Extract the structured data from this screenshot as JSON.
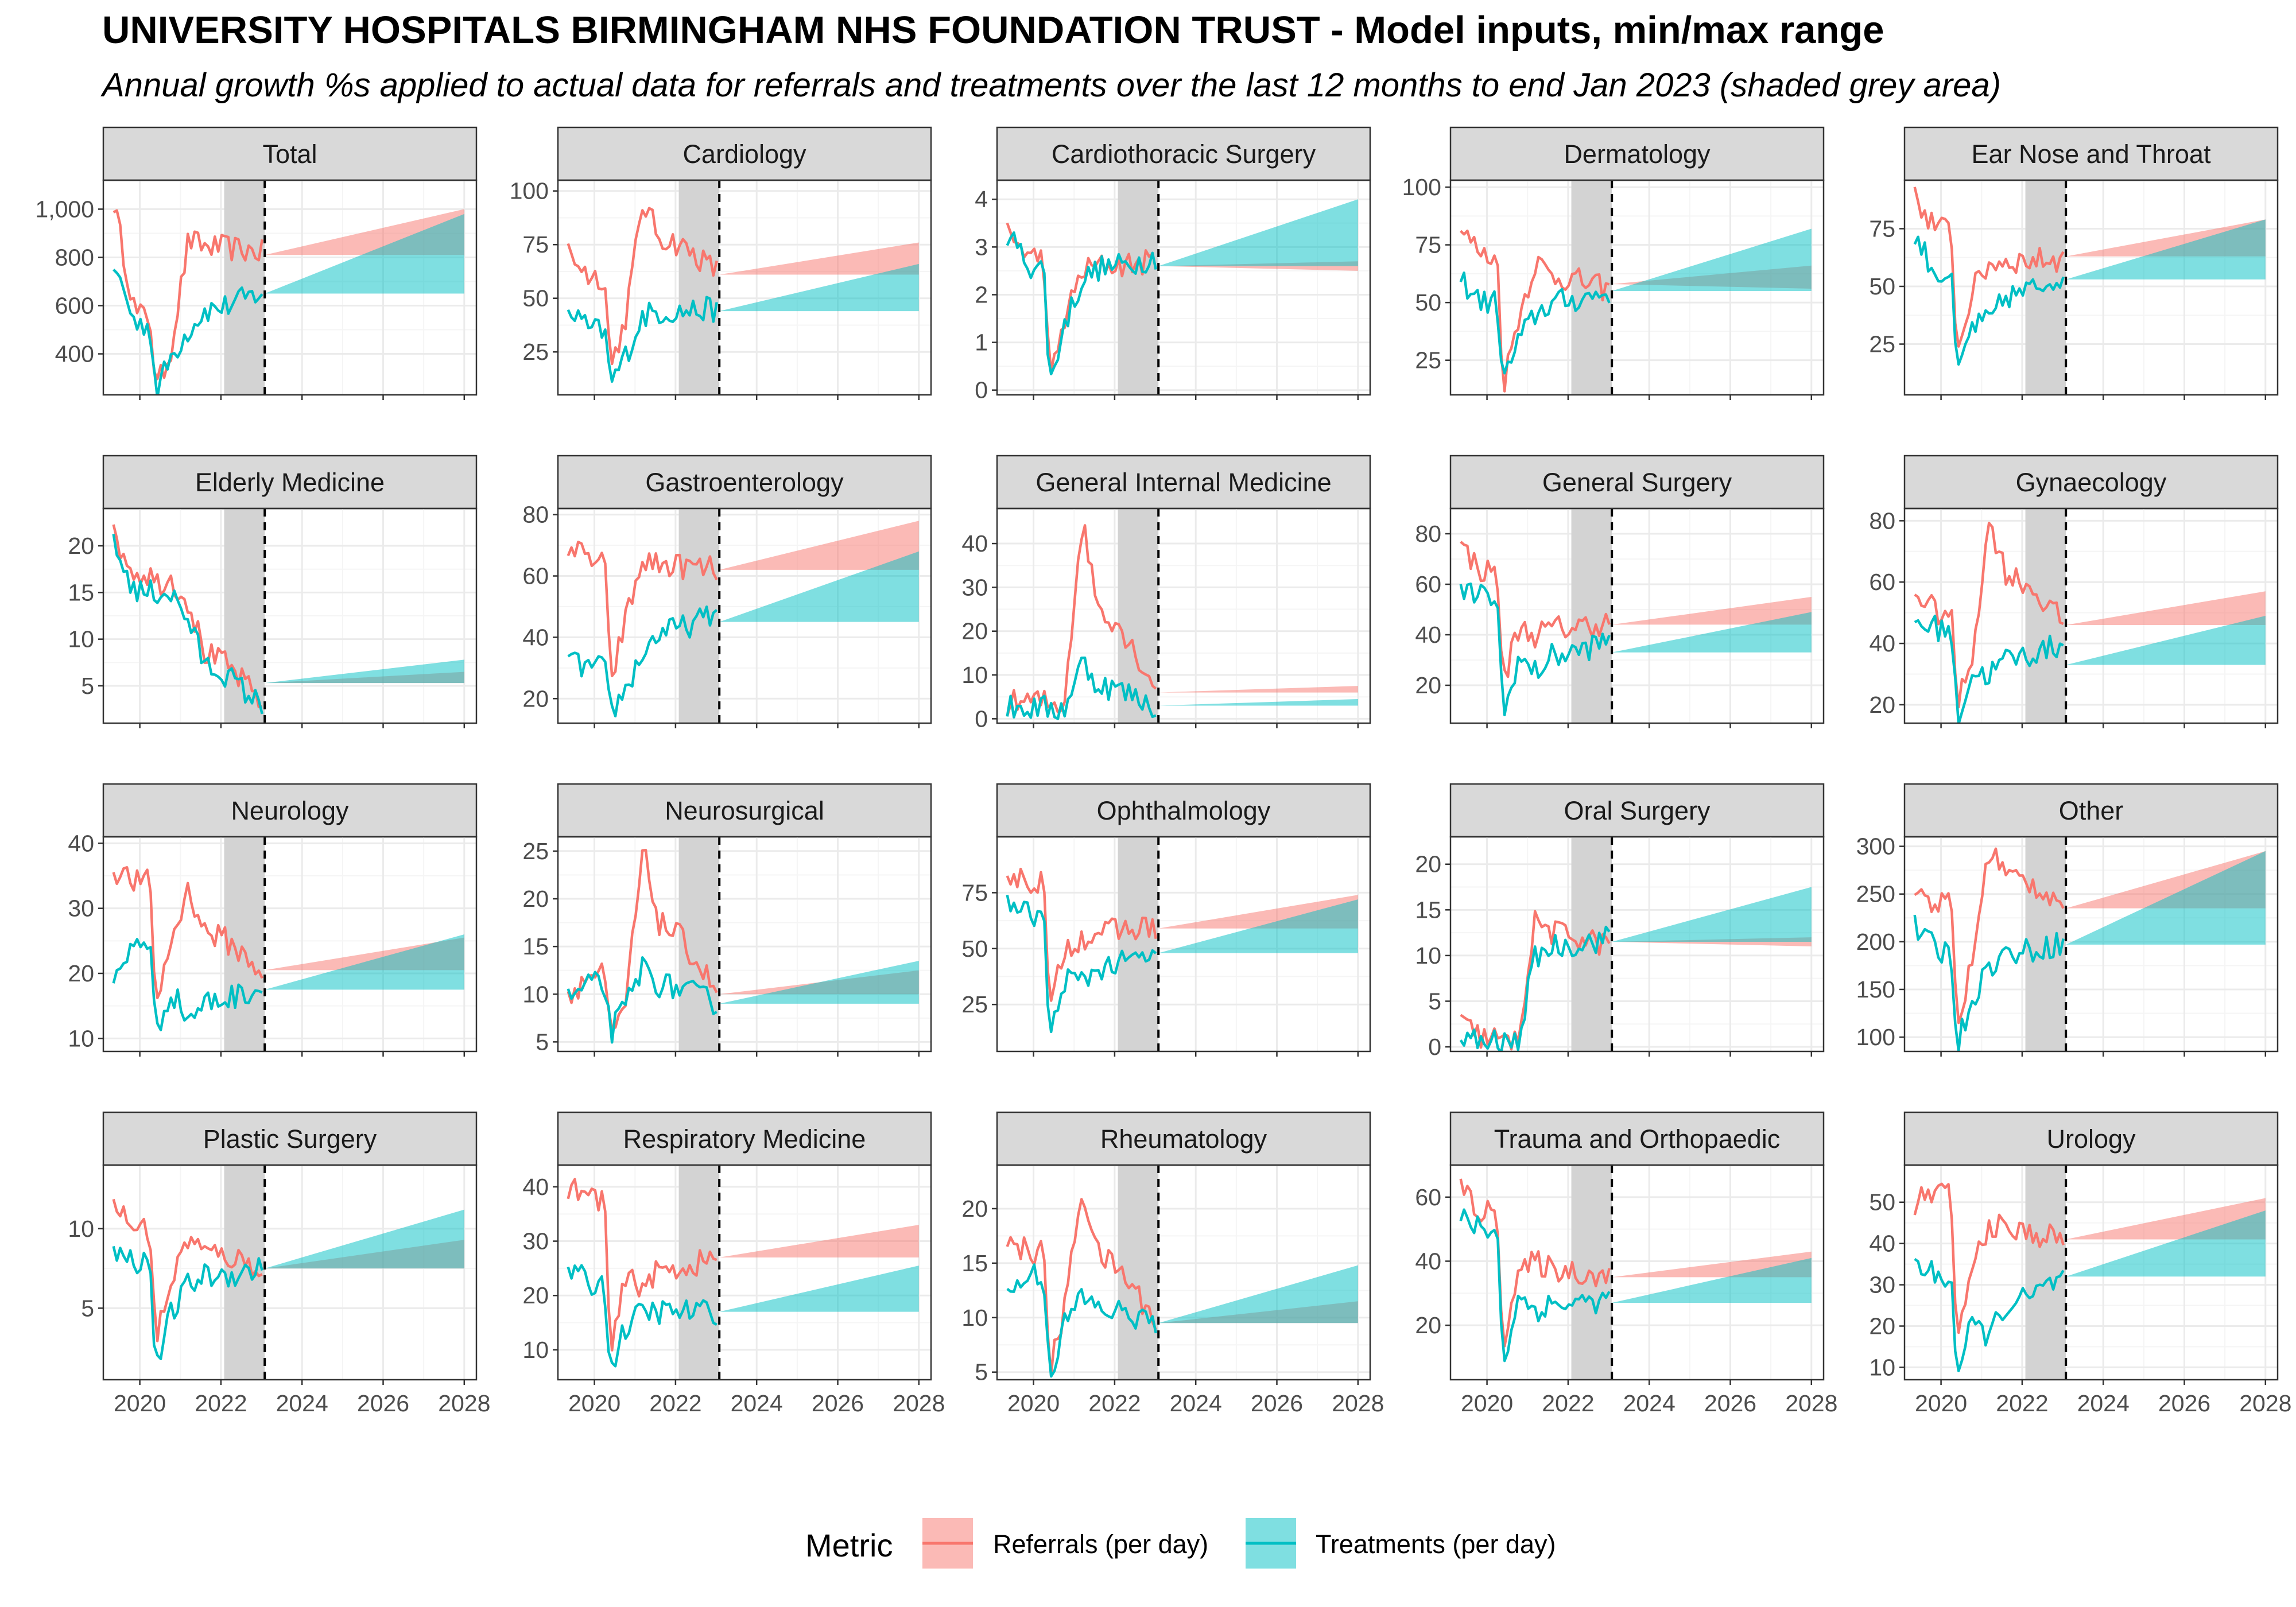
{
  "title": "UNIVERSITY HOSPITALS BIRMINGHAM NHS FOUNDATION TRUST - Model inputs, min/max range",
  "subtitle": "Annual growth %s applied to actual data for referrals and treatments over the last 12 months to end Jan 2023 (shaded grey area)",
  "colors": {
    "referrals": "#F8766D",
    "treatments": "#00BFC4",
    "shade": "#d3d3d3",
    "strip_bg": "#d9d9d9",
    "grid_major": "#ebebeb",
    "grid_minor": "#f5f5f5"
  },
  "legend": {
    "title": "Metric",
    "items": [
      {
        "label": "Referrals (per day)",
        "color": "#F8766D"
      },
      {
        "label": "Treatments (per day)",
        "color": "#00BFC4"
      }
    ]
  },
  "chart_data": {
    "type": "line",
    "facet_layout": "5 columns x 4 rows, shared x axis",
    "xlim": [
      2019.1,
      2028.3
    ],
    "x_ticks": [
      2020,
      2022,
      2024,
      2026,
      2028
    ],
    "x_tick_labels": [
      "2020",
      "2022",
      "2024",
      "2026",
      "2028"
    ],
    "shaded_period": [
      2022.08,
      2023.08
    ],
    "forecast_start": 2023.08,
    "forecast_end": 2028.0,
    "grid": true,
    "legend_position": "bottom",
    "panels": [
      {
        "name": "Total",
        "ylim": [
          230,
          1120
        ],
        "y_ticks": [
          400,
          600,
          800,
          1000
        ],
        "y_tick_labels": [
          "400",
          "600",
          "800",
          "1,000"
        ],
        "referrals": {
          "start": 1030,
          "low": 560,
          "covid": 250,
          "mid": 870,
          "end": 820
        },
        "treatments": {
          "start": 770,
          "low": 520,
          "covid": 240,
          "mid": 500,
          "end": 660
        },
        "referrals_band": {
          "start": 810,
          "min": 810,
          "max": 1000
        },
        "treatments_band": {
          "start": 650,
          "min": 650,
          "max": 980
        }
      },
      {
        "name": "Cardiology",
        "ylim": [
          5,
          105
        ],
        "y_ticks": [
          25,
          50,
          75,
          100
        ],
        "y_tick_labels": [
          "25",
          "50",
          "75",
          "100"
        ],
        "referrals": {
          "start": 72,
          "low": 60,
          "covid": 18,
          "mid": 95,
          "end": 62
        },
        "treatments": {
          "start": 45,
          "low": 35,
          "covid": 10,
          "mid": 42,
          "end": 45
        },
        "referrals_band": {
          "start": 61,
          "min": 61,
          "max": 76
        },
        "treatments_band": {
          "start": 44,
          "min": 44,
          "max": 66
        }
      },
      {
        "name": "Cardiothoracic Surgery",
        "ylim": [
          -0.1,
          4.4
        ],
        "y_ticks": [
          0,
          1,
          2,
          3,
          4
        ],
        "y_tick_labels": [
          "0",
          "1",
          "2",
          "3",
          "4"
        ],
        "referrals": {
          "start": 3.3,
          "low": 2.8,
          "covid": 0.1,
          "mid": 2.5,
          "end": 2.7
        },
        "treatments": {
          "start": 3.3,
          "low": 2.6,
          "covid": 0.1,
          "mid": 2.3,
          "end": 2.8
        },
        "referrals_band": {
          "start": 2.6,
          "min": 2.5,
          "max": 2.7
        },
        "treatments_band": {
          "start": 2.6,
          "min": 2.6,
          "max": 4.0
        }
      },
      {
        "name": "Dermatology",
        "ylim": [
          10,
          103
        ],
        "y_ticks": [
          25,
          50,
          75,
          100
        ],
        "y_tick_labels": [
          "25",
          "50",
          "75",
          "100"
        ],
        "referrals": {
          "start": 82,
          "low": 70,
          "covid": 14,
          "mid": 68,
          "end": 55
        },
        "treatments": {
          "start": 60,
          "low": 50,
          "covid": 15,
          "mid": 45,
          "end": 55
        },
        "referrals_band": {
          "start": 58,
          "min": 56,
          "max": 66
        },
        "treatments_band": {
          "start": 55,
          "min": 55,
          "max": 82
        }
      },
      {
        "name": "Ear Nose and Throat",
        "ylim": [
          3,
          96
        ],
        "y_ticks": [
          25,
          50,
          75
        ],
        "y_tick_labels": [
          "25",
          "50",
          "75"
        ],
        "referrals": {
          "start": 88,
          "low": 75,
          "covid": 20,
          "mid": 60,
          "end": 62
        },
        "treatments": {
          "start": 72,
          "low": 55,
          "covid": 10,
          "mid": 35,
          "end": 56
        },
        "referrals_band": {
          "start": 63,
          "min": 63,
          "max": 79
        },
        "treatments_band": {
          "start": 53,
          "min": 53,
          "max": 79
        }
      },
      {
        "name": "Elderly Medicine",
        "ylim": [
          1,
          24
        ],
        "y_ticks": [
          5,
          10,
          15,
          20
        ],
        "y_tick_labels": [
          "5",
          "10",
          "15",
          "20"
        ],
        "referrals": {
          "start": 21,
          "low": 17,
          "covid": 16,
          "mid": 14,
          "end": 3
        },
        "treatments": {
          "start": 20,
          "low": 15,
          "covid": 15,
          "mid": 12,
          "end": 2.5
        },
        "referrals_band": {
          "start": 5.3,
          "min": 5.3,
          "max": 6.5
        },
        "treatments_band": {
          "start": 5.3,
          "min": 5.3,
          "max": 7.8
        }
      },
      {
        "name": "Gastroenterology",
        "ylim": [
          12,
          82
        ],
        "y_ticks": [
          20,
          40,
          60,
          80
        ],
        "y_tick_labels": [
          "20",
          "40",
          "60",
          "80"
        ],
        "referrals": {
          "start": 70,
          "low": 65,
          "covid": 25,
          "mid": 65,
          "end": 62
        },
        "treatments": {
          "start": 32,
          "low": 30,
          "covid": 15,
          "mid": 35,
          "end": 48
        },
        "referrals_band": {
          "start": 62,
          "min": 62,
          "max": 78
        },
        "treatments_band": {
          "start": 45,
          "min": 45,
          "max": 68
        }
      },
      {
        "name": "General Internal Medicine",
        "ylim": [
          -1,
          48
        ],
        "y_ticks": [
          0,
          10,
          20,
          30,
          40
        ],
        "y_tick_labels": [
          "0",
          "10",
          "20",
          "30",
          "40"
        ],
        "referrals": {
          "start": 3.5,
          "low": 4,
          "covid": 3,
          "mid": 45,
          "end": 6
        },
        "treatments": {
          "start": 2.5,
          "low": 2.5,
          "covid": 2,
          "mid": 13,
          "end": 2.5
        },
        "referrals_band": {
          "start": 6,
          "min": 6,
          "max": 7.5
        },
        "treatments_band": {
          "start": 3,
          "min": 3,
          "max": 4.5
        }
      },
      {
        "name": "General Surgery",
        "ylim": [
          5,
          90
        ],
        "y_ticks": [
          20,
          40,
          60,
          80
        ],
        "y_tick_labels": [
          "20",
          "40",
          "60",
          "80"
        ],
        "referrals": {
          "start": 75,
          "low": 65,
          "covid": 20,
          "mid": 40,
          "end": 45
        },
        "treatments": {
          "start": 57,
          "low": 55,
          "covid": 6,
          "mid": 25,
          "end": 38
        },
        "referrals_band": {
          "start": 44,
          "min": 44,
          "max": 55
        },
        "treatments_band": {
          "start": 33,
          "min": 33,
          "max": 49
        }
      },
      {
        "name": "Gynaecology",
        "ylim": [
          14,
          84
        ],
        "y_ticks": [
          20,
          40,
          60,
          80
        ],
        "y_tick_labels": [
          "20",
          "40",
          "60",
          "80"
        ],
        "referrals": {
          "start": 57,
          "low": 50,
          "covid": 20,
          "mid": 80,
          "end": 46
        },
        "treatments": {
          "start": 47,
          "low": 45,
          "covid": 15,
          "mid": 30,
          "end": 40
        },
        "referrals_band": {
          "start": 46,
          "min": 46,
          "max": 57
        },
        "treatments_band": {
          "start": 33,
          "min": 33,
          "max": 49
        }
      },
      {
        "name": "Neurology",
        "ylim": [
          8,
          41
        ],
        "y_ticks": [
          10,
          20,
          30,
          40
        ],
        "y_tick_labels": [
          "10",
          "20",
          "30",
          "40"
        ],
        "referrals": {
          "start": 36,
          "low": 34,
          "covid": 15,
          "mid": 33,
          "end": 20
        },
        "treatments": {
          "start": 18,
          "low": 25,
          "covid": 10,
          "mid": 13,
          "end": 18
        },
        "referrals_band": {
          "start": 20.5,
          "min": 20.5,
          "max": 25.5
        },
        "treatments_band": {
          "start": 17.5,
          "min": 17.5,
          "max": 26
        }
      },
      {
        "name": "Neurosurgical",
        "ylim": [
          4,
          26.5
        ],
        "y_ticks": [
          5,
          10,
          15,
          20,
          25
        ],
        "y_tick_labels": [
          "5",
          "10",
          "15",
          "20",
          "25"
        ],
        "referrals": {
          "start": 10,
          "low": 12,
          "covid": 5,
          "mid": 25,
          "end": 10
        },
        "treatments": {
          "start": 9.5,
          "low": 11,
          "covid": 6,
          "mid": 13,
          "end": 9
        },
        "referrals_band": {
          "start": 10,
          "min": 10,
          "max": 12.5
        },
        "treatments_band": {
          "start": 9,
          "min": 9,
          "max": 13.5
        }
      },
      {
        "name": "Ophthalmology",
        "ylim": [
          4,
          100
        ],
        "y_ticks": [
          25,
          50,
          75
        ],
        "y_tick_labels": [
          "25",
          "50",
          "75"
        ],
        "referrals": {
          "start": 83,
          "low": 80,
          "covid": 20,
          "mid": 55,
          "end": 60
        },
        "treatments": {
          "start": 70,
          "low": 65,
          "covid": 8,
          "mid": 35,
          "end": 48
        },
        "referrals_band": {
          "start": 59,
          "min": 59,
          "max": 74
        },
        "treatments_band": {
          "start": 48,
          "min": 48,
          "max": 72
        }
      },
      {
        "name": "Oral Surgery",
        "ylim": [
          -0.5,
          23
        ],
        "y_ticks": [
          0,
          5,
          10,
          15,
          20
        ],
        "y_tick_labels": [
          "0",
          "5",
          "10",
          "15",
          "20"
        ],
        "referrals": {
          "start": 2.5,
          "low": 1,
          "covid": 0.3,
          "mid": 14,
          "end": 11
        },
        "treatments": {
          "start": 0.8,
          "low": 0.5,
          "covid": 0.3,
          "mid": 10,
          "end": 12
        },
        "referrals_band": {
          "start": 11.5,
          "min": 11,
          "max": 12
        },
        "treatments_band": {
          "start": 11.5,
          "min": 11.5,
          "max": 17.5
        }
      },
      {
        "name": "Other",
        "ylim": [
          85,
          310
        ],
        "y_ticks": [
          100,
          150,
          200,
          250,
          300
        ],
        "y_tick_labels": [
          "100",
          "150",
          "200",
          "250",
          "300"
        ],
        "referrals": {
          "start": 255,
          "low": 240,
          "covid": 110,
          "mid": 300,
          "end": 240
        },
        "treatments": {
          "start": 215,
          "low": 190,
          "covid": 90,
          "mid": 175,
          "end": 200
        },
        "referrals_band": {
          "start": 235,
          "min": 235,
          "max": 295
        },
        "treatments_band": {
          "start": 197,
          "min": 197,
          "max": 295
        }
      },
      {
        "name": "Plastic Surgery",
        "ylim": [
          0.5,
          14
        ],
        "y_ticks": [
          5,
          10
        ],
        "y_tick_labels": [
          "5",
          "10"
        ],
        "referrals": {
          "start": 11.5,
          "low": 10,
          "covid": 3,
          "mid": 9.5,
          "end": 7.5
        },
        "treatments": {
          "start": 8.5,
          "low": 8,
          "covid": 1,
          "mid": 6.5,
          "end": 7.5
        },
        "referrals_band": {
          "start": 7.5,
          "min": 7.5,
          "max": 9.3
        },
        "treatments_band": {
          "start": 7.5,
          "min": 7.5,
          "max": 11.2
        }
      },
      {
        "name": "Respiratory Medicine",
        "ylim": [
          4.5,
          44
        ],
        "y_ticks": [
          10,
          20,
          30,
          40
        ],
        "y_tick_labels": [
          "10",
          "20",
          "30",
          "40"
        ],
        "referrals": {
          "start": 40,
          "low": 38,
          "covid": 8,
          "mid": 22,
          "end": 27
        },
        "treatments": {
          "start": 25,
          "low": 22,
          "covid": 6,
          "mid": 17,
          "end": 17
        },
        "referrals_band": {
          "start": 27,
          "min": 27,
          "max": 33
        },
        "treatments_band": {
          "start": 17,
          "min": 17,
          "max": 25.5
        }
      },
      {
        "name": "Rheumatology",
        "ylim": [
          4.3,
          24
        ],
        "y_ticks": [
          5,
          10,
          15,
          20
        ],
        "y_tick_labels": [
          "5",
          "10",
          "15",
          "20"
        ],
        "referrals": {
          "start": 17,
          "low": 16,
          "covid": 5,
          "mid": 22,
          "end": 9.5
        },
        "treatments": {
          "start": 12,
          "low": 14,
          "covid": 4.5,
          "mid": 12,
          "end": 9.5
        },
        "referrals_band": {
          "start": 9.5,
          "min": 9.5,
          "max": 11.5
        },
        "treatments_band": {
          "start": 9.5,
          "min": 9.5,
          "max": 14.8
        }
      },
      {
        "name": "Trauma and Orthopaedic",
        "ylim": [
          3,
          70
        ],
        "y_ticks": [
          20,
          40,
          60
        ],
        "y_tick_labels": [
          "20",
          "40",
          "60"
        ],
        "referrals": {
          "start": 62,
          "low": 55,
          "covid": 15,
          "mid": 40,
          "end": 35
        },
        "treatments": {
          "start": 53,
          "low": 50,
          "covid": 7,
          "mid": 25,
          "end": 28
        },
        "referrals_band": {
          "start": 35,
          "min": 35,
          "max": 43
        },
        "treatments_band": {
          "start": 27,
          "min": 27,
          "max": 41
        }
      },
      {
        "name": "Urology",
        "ylim": [
          7,
          59
        ],
        "y_ticks": [
          10,
          20,
          30,
          40,
          50
        ],
        "y_tick_labels": [
          "10",
          "20",
          "30",
          "40",
          "50"
        ],
        "referrals": {
          "start": 50,
          "low": 52,
          "covid": 15,
          "mid": 45,
          "end": 41
        },
        "treatments": {
          "start": 35,
          "low": 32,
          "covid": 8,
          "mid": 18,
          "end": 32
        },
        "referrals_band": {
          "start": 41,
          "min": 41,
          "max": 51
        },
        "treatments_band": {
          "start": 32,
          "min": 32,
          "max": 48
        }
      }
    ]
  }
}
